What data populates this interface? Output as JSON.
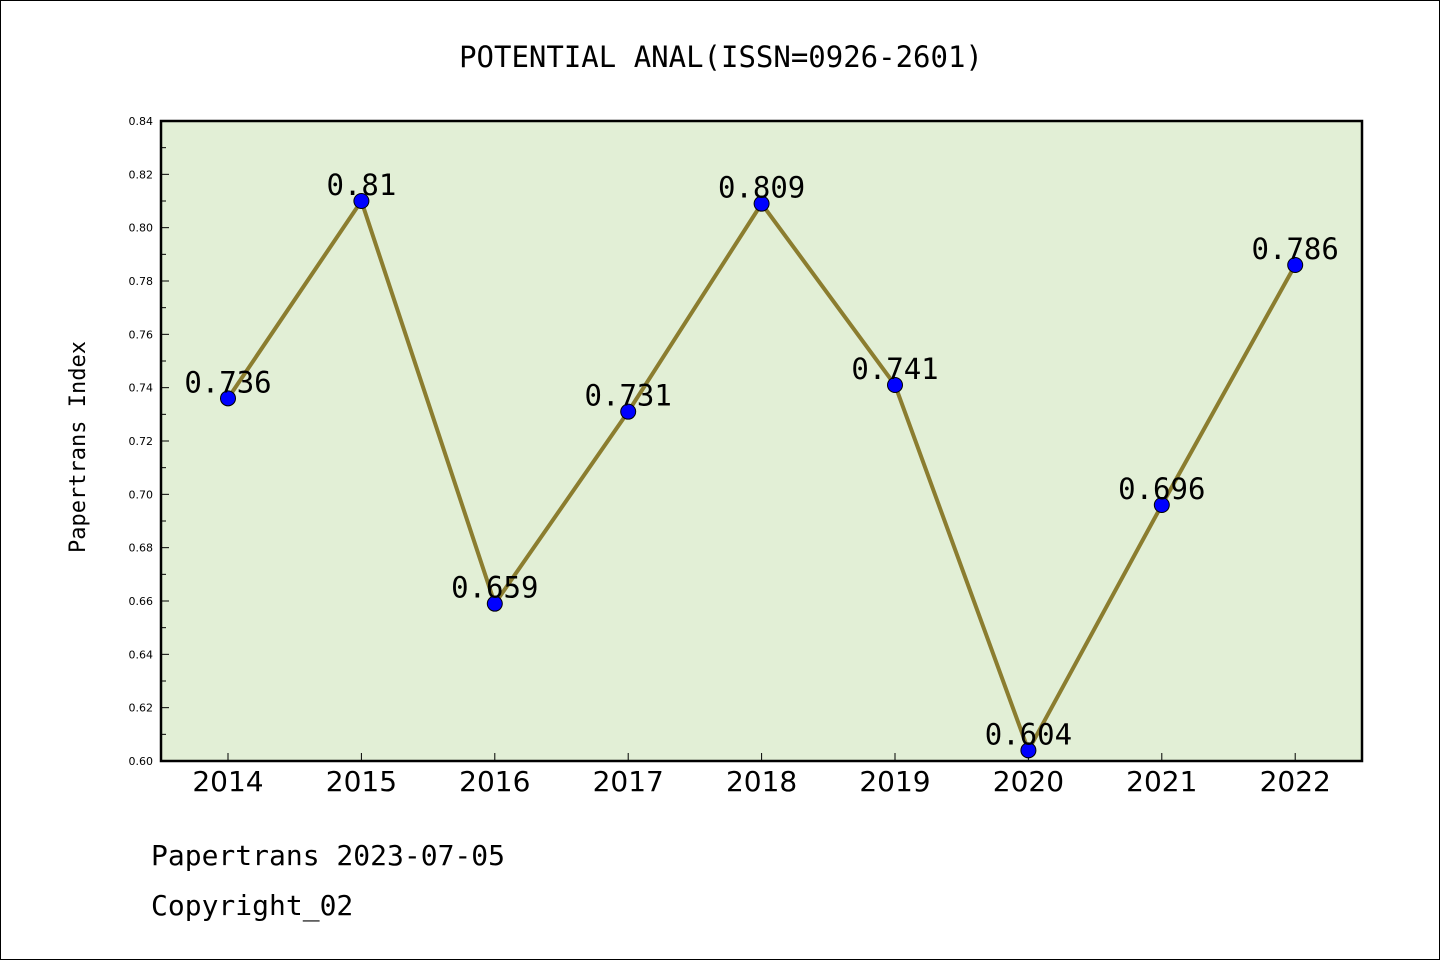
{
  "chart_data": {
    "type": "line",
    "title": "POTENTIAL ANAL(ISSN=0926-2601)",
    "ylabel": "Papertrans Index",
    "xlabel": "",
    "categories": [
      "2014",
      "2015",
      "2016",
      "2017",
      "2018",
      "2019",
      "2020",
      "2021",
      "2022"
    ],
    "values": [
      0.736,
      0.81,
      0.659,
      0.731,
      0.809,
      0.741,
      0.604,
      0.696,
      0.786
    ],
    "data_labels": [
      "0.736",
      "0.81",
      "0.659",
      "0.731",
      "0.809",
      "0.741",
      "0.604",
      "0.696",
      "0.786"
    ],
    "ylim": [
      0.6,
      0.84
    ],
    "yticks": [
      "0.60",
      "0.62",
      "0.64",
      "0.66",
      "0.68",
      "0.70",
      "0.72",
      "0.74",
      "0.76",
      "0.78",
      "0.80",
      "0.82",
      "0.84"
    ],
    "grid": false,
    "colors": {
      "plot_background": "#e2efd6",
      "line": "#8b7d2f",
      "marker": "#0000ff"
    }
  },
  "footer": {
    "line1": "Papertrans 2023-07-05",
    "line2": "Copyright_02"
  }
}
